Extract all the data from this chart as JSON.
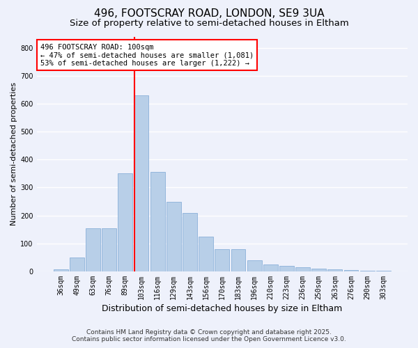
{
  "title1": "496, FOOTSCRAY ROAD, LONDON, SE9 3UA",
  "title2": "Size of property relative to semi-detached houses in Eltham",
  "xlabel": "Distribution of semi-detached houses by size in Eltham",
  "ylabel": "Number of semi-detached properties",
  "categories": [
    "36sqm",
    "49sqm",
    "63sqm",
    "76sqm",
    "89sqm",
    "103sqm",
    "116sqm",
    "129sqm",
    "143sqm",
    "156sqm",
    "170sqm",
    "183sqm",
    "196sqm",
    "210sqm",
    "223sqm",
    "236sqm",
    "250sqm",
    "263sqm",
    "276sqm",
    "290sqm",
    "303sqm"
  ],
  "values": [
    8,
    50,
    155,
    155,
    350,
    630,
    355,
    250,
    210,
    125,
    80,
    80,
    40,
    25,
    20,
    15,
    10,
    7,
    5,
    3,
    2
  ],
  "bar_color": "#b8cfe8",
  "bar_edgecolor": "#8ab0d8",
  "vline_color": "red",
  "vline_index": 5,
  "annotation_title": "496 FOOTSCRAY ROAD: 100sqm",
  "annotation_line2": "← 47% of semi-detached houses are smaller (1,081)",
  "annotation_line3": "53% of semi-detached houses are larger (1,222) →",
  "annotation_box_edgecolor": "red",
  "ylim": [
    0,
    840
  ],
  "yticks": [
    0,
    100,
    200,
    300,
    400,
    500,
    600,
    700,
    800
  ],
  "footnote1": "Contains HM Land Registry data © Crown copyright and database right 2025.",
  "footnote2": "Contains public sector information licensed under the Open Government Licence v3.0.",
  "background_color": "#eef1fb",
  "plot_background": "#eef1fb",
  "grid_color": "#ffffff",
  "title1_fontsize": 11,
  "title2_fontsize": 9.5,
  "annotation_fontsize": 7.5,
  "xlabel_fontsize": 9,
  "ylabel_fontsize": 8,
  "tick_fontsize": 7,
  "footnote_fontsize": 6.5
}
